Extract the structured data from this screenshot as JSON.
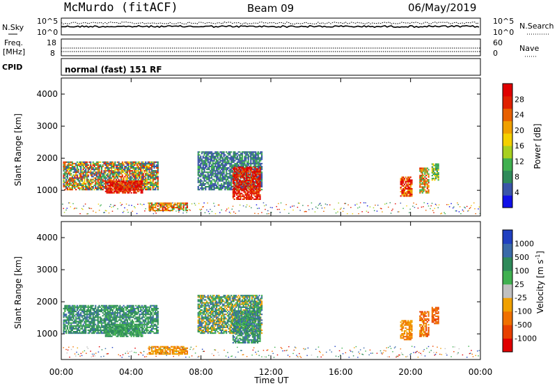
{
  "header": {
    "station": "McMurdo (fitACF)",
    "beam": "Beam 09",
    "date": "06/May/2019"
  },
  "top_panel": {
    "left_label": "N.Sky",
    "right_label": "N.Search",
    "left_ticks": [
      "10^5",
      "10^0"
    ],
    "right_ticks": [
      "10^5",
      "10^0"
    ]
  },
  "freq_panel": {
    "left_label_1": "Freq.",
    "left_label_2": "[MHz]",
    "left_ticks": [
      "18",
      "8"
    ],
    "right_label": "Nave",
    "right_ticks": [
      "60",
      "0"
    ]
  },
  "cpid_panel": {
    "label": "CPID",
    "text": "normal (fast) 151 RF"
  },
  "chart_data": [
    {
      "type": "heatmap",
      "name_key": "power",
      "ylabel": "Slant Range [km]",
      "yticks": [
        "4000",
        "3000",
        "2000",
        "1000"
      ],
      "ylim": [
        200,
        4500
      ],
      "xlim": [
        0,
        24
      ],
      "colorbar_label": "Power [dB]",
      "colorbar_ticks": [
        "28",
        "24",
        "20",
        "16",
        "12",
        "8",
        "4"
      ],
      "colors": [
        "#1010e8",
        "#3a55a8",
        "#2f8a5a",
        "#40b050",
        "#a8d020",
        "#f4d000",
        "#f0a000",
        "#e86000",
        "#e02000",
        "#e00000"
      ]
    },
    {
      "type": "heatmap",
      "name_key": "velocity",
      "ylabel": "Slant Range [km]",
      "yticks": [
        "4000",
        "3000",
        "2000",
        "1000"
      ],
      "ylim": [
        200,
        4500
      ],
      "xlim": [
        0,
        24
      ],
      "xlabel": "Time UT",
      "xticks": [
        "00:00",
        "04:00",
        "08:00",
        "12:00",
        "16:00",
        "20:00",
        "00:00"
      ],
      "colorbar_label": "Velocity [m s",
      "colorbar_label_sup": "-1",
      "colorbar_label_end": "]",
      "colorbar_ticks": [
        "1000",
        "500",
        "100",
        "25",
        "-25",
        "-100",
        "-500",
        "-1000"
      ],
      "colors": [
        "#2040c0",
        "#3a6aa8",
        "#2f8a5a",
        "#40b050",
        "#c0c0c0",
        "#f0a000",
        "#f07000",
        "#e84000",
        "#e00000"
      ]
    }
  ]
}
